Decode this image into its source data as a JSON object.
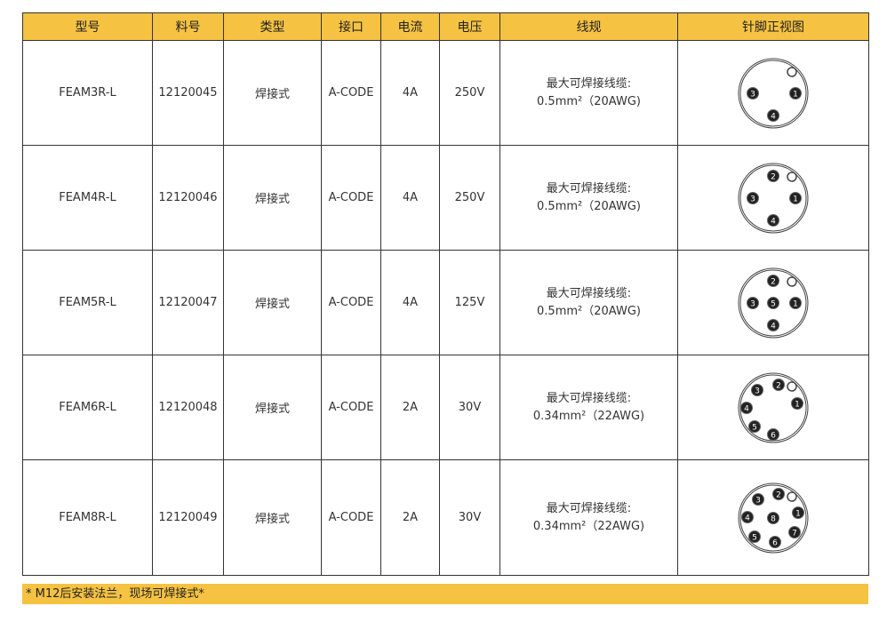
{
  "headers": [
    "型号",
    "料号",
    "类型",
    "接口",
    "电流",
    "电压",
    "线规",
    "针脚正视图"
  ],
  "rows": [
    {
      "model": "FEAM3R-L",
      "part": "12120045",
      "type": "焊接式",
      "interface": "A-CODE",
      "current": "4A",
      "voltage": "250V",
      "wire_line1": "最大可焊接线缆:",
      "wire_line2": "0.5mm²（20AWG)",
      "pins": [
        "1",
        "3",
        "4"
      ]
    },
    {
      "model": "FEAM4R-L",
      "part": "12120046",
      "type": "焊接式",
      "interface": "A-CODE",
      "current": "4A",
      "voltage": "250V",
      "wire_line1": "最大可焊接线缆:",
      "wire_line2": "0.5mm²（20AWG)",
      "pins": [
        "1",
        "2",
        "3",
        "4"
      ]
    },
    {
      "model": "FEAM5R-L",
      "part": "12120047",
      "type": "焊接式",
      "interface": "A-CODE",
      "current": "4A",
      "voltage": "125V",
      "wire_line1": "最大可焊接线缆:",
      "wire_line2": "0.5mm²（20AWG)",
      "pins": [
        "1",
        "2",
        "3",
        "4",
        "5"
      ]
    },
    {
      "model": "FEAM6R-L",
      "part": "12120048",
      "type": "焊接式",
      "interface": "A-CODE",
      "current": "2A",
      "voltage": "30V",
      "wire_line1": "最大可焊接线缆:",
      "wire_line2": "0.34mm²（22AWG)",
      "pins": [
        "1",
        "2",
        "3",
        "4",
        "5",
        "6"
      ]
    },
    {
      "model": "FEAM8R-L",
      "part": "12120049",
      "type": "焊接式",
      "interface": "A-CODE",
      "current": "2A",
      "voltage": "30V",
      "wire_line1": "最大可焊接线缆:",
      "wire_line2": "0.34mm²（22AWG)",
      "pins": [
        "1",
        "2",
        "3",
        "4",
        "5",
        "6",
        "7",
        "8"
      ]
    }
  ],
  "footer": "* M12后安装法兰，现场可焊接式*",
  "colors": {
    "header_bg": "#f5c242",
    "pin_fill": "#222222"
  }
}
